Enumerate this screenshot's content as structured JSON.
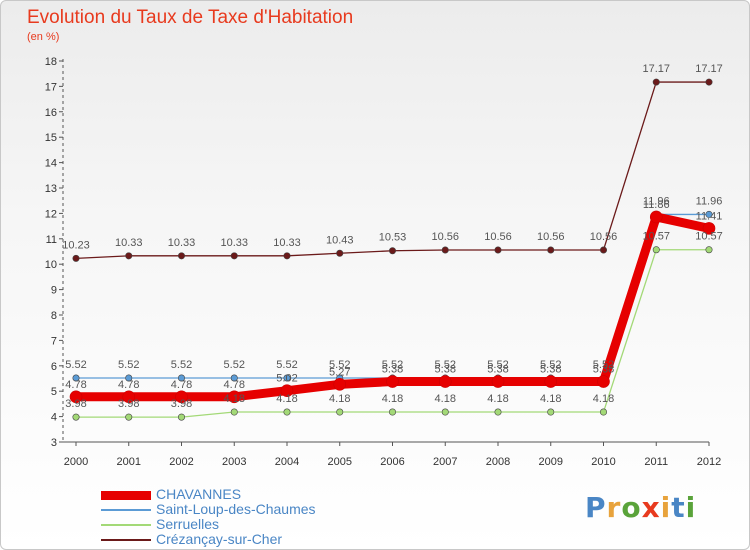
{
  "title": "Evolution du Taux de Taxe d'Habitation",
  "unit": "(en %)",
  "logo": [
    "P",
    "r",
    "o",
    "x",
    "i",
    "t",
    "i"
  ],
  "logo_colors": [
    "#4a86c5",
    "#e8a33c",
    "#5aa33a",
    "#e83a1e",
    "#e8a33c",
    "#4a86c5",
    "#5aa33a"
  ],
  "chart_data": {
    "type": "line",
    "categories": [
      "2000",
      "2001",
      "2002",
      "2003",
      "2004",
      "2005",
      "2006",
      "2007",
      "2008",
      "2009",
      "2010",
      "2011",
      "2012"
    ],
    "ylim": [
      3,
      18
    ],
    "yticks": [
      3,
      4,
      5,
      6,
      7,
      8,
      9,
      10,
      11,
      12,
      13,
      14,
      15,
      16,
      17,
      18
    ],
    "grid": false,
    "legend_position": "bottom-left",
    "series": [
      {
        "name": "CHAVANNES",
        "color": "#e60000",
        "values": [
          4.78,
          4.78,
          4.78,
          4.78,
          5.02,
          5.27,
          5.38,
          5.38,
          5.38,
          5.38,
          5.38,
          11.86,
          11.41
        ]
      },
      {
        "name": "Saint-Loup-des-Chaumes",
        "color": "#5b9bd5",
        "values": [
          5.52,
          5.52,
          5.52,
          5.52,
          5.52,
          5.52,
          5.52,
          5.52,
          5.52,
          5.52,
          5.52,
          11.96,
          11.96
        ]
      },
      {
        "name": "Serruelles",
        "color": "#a3d977",
        "values": [
          3.98,
          3.98,
          3.98,
          4.18,
          4.18,
          4.18,
          4.18,
          4.18,
          4.18,
          4.18,
          4.18,
          10.57,
          10.57
        ]
      },
      {
        "name": "Crézançay-sur-Cher",
        "color": "#6b1a1a",
        "values": [
          10.23,
          10.33,
          10.33,
          10.33,
          10.33,
          10.43,
          10.53,
          10.56,
          10.56,
          10.56,
          10.56,
          17.17,
          17.17
        ]
      }
    ]
  }
}
